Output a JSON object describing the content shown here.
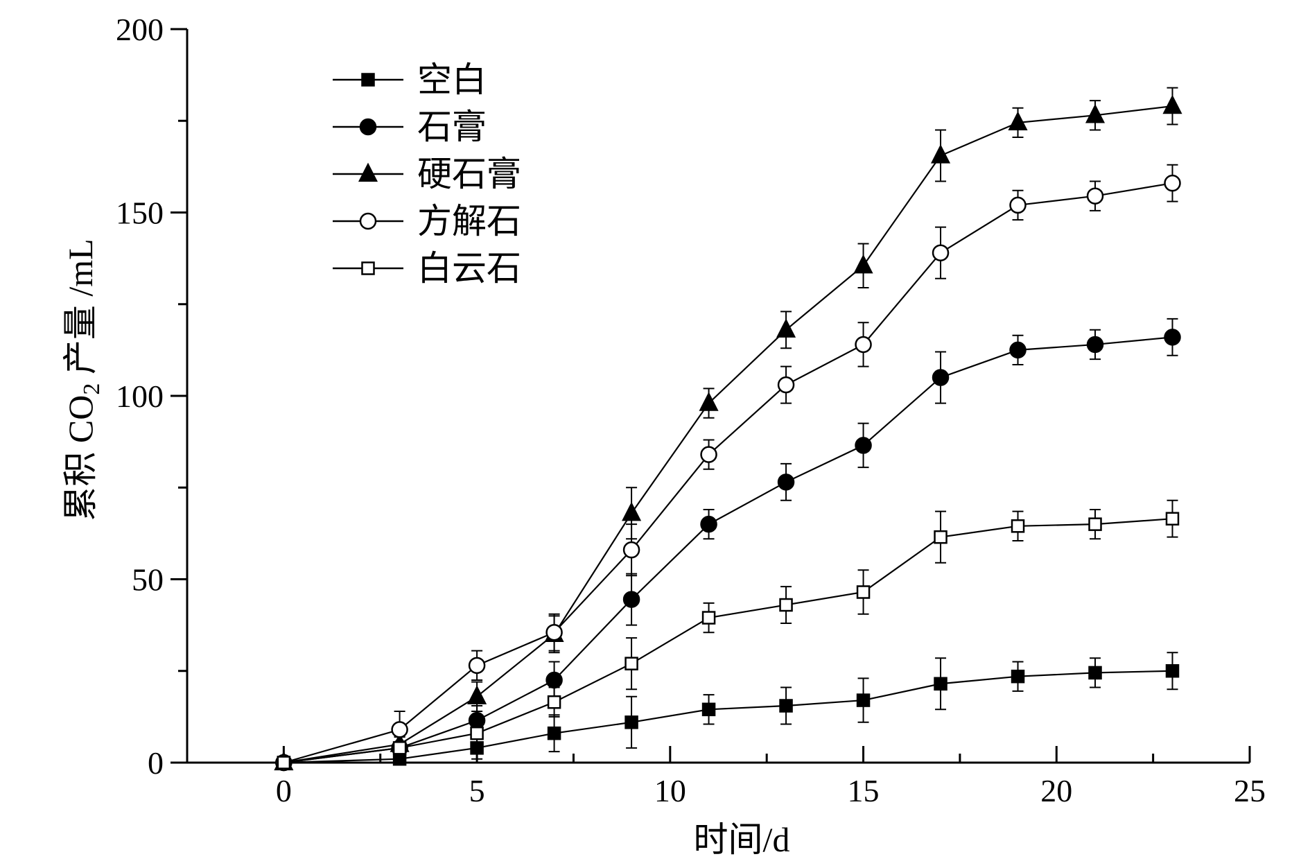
{
  "chart_data": {
    "type": "line",
    "title": "",
    "xlabel": "时间/d",
    "ylabel": {
      "prefix": "累积 CO",
      "subscript": "2",
      "suffix": " 产量 /mL"
    },
    "xlim": [
      -2.5,
      25
    ],
    "ylim": [
      0,
      200
    ],
    "xticks": [
      0,
      5,
      10,
      15,
      20,
      25
    ],
    "yticks": [
      0,
      50,
      100,
      150,
      200
    ],
    "legend_position": "top-left",
    "x": [
      0,
      3,
      5,
      7,
      9,
      11,
      13,
      15,
      17,
      19,
      21,
      23
    ],
    "series": [
      {
        "name": "空白",
        "marker": "square",
        "filled": true,
        "values": [
          0,
          1,
          4,
          8,
          11,
          14.5,
          15.5,
          17,
          21.5,
          23.5,
          24.5,
          25
        ],
        "errors": [
          1.5,
          1.5,
          3,
          5,
          7,
          4,
          5,
          6,
          7,
          4,
          4,
          5
        ]
      },
      {
        "name": "石膏",
        "marker": "circle",
        "filled": true,
        "values": [
          0,
          4,
          11.5,
          22.5,
          44.5,
          65,
          76.5,
          86.5,
          105,
          112.5,
          114,
          116
        ],
        "errors": [
          1.5,
          3,
          4,
          5,
          7,
          4,
          5,
          6,
          7,
          4,
          4,
          5
        ]
      },
      {
        "name": "硬石膏",
        "marker": "triangle",
        "filled": true,
        "values": [
          0,
          5,
          18,
          35,
          68,
          98,
          118,
          135.5,
          165.5,
          174.5,
          176.5,
          179
        ],
        "errors": [
          1.5,
          3,
          4,
          5,
          7,
          4,
          5,
          6,
          7,
          4,
          4,
          5
        ]
      },
      {
        "name": "方解石",
        "marker": "circle",
        "filled": false,
        "values": [
          0,
          9,
          26.5,
          35.5,
          58,
          84,
          103,
          114,
          139,
          152,
          154.5,
          158
        ],
        "errors": [
          1.5,
          5,
          4,
          5,
          7,
          4,
          5,
          6,
          7,
          4,
          4,
          5
        ]
      },
      {
        "name": "白云石",
        "marker": "square",
        "filled": false,
        "values": [
          0,
          4,
          8,
          16.5,
          27,
          39.5,
          43,
          46.5,
          61.5,
          64.5,
          65,
          66.5
        ],
        "errors": [
          1.5,
          3,
          4,
          4,
          7,
          4,
          5,
          6,
          7,
          4,
          4,
          5
        ]
      }
    ]
  }
}
